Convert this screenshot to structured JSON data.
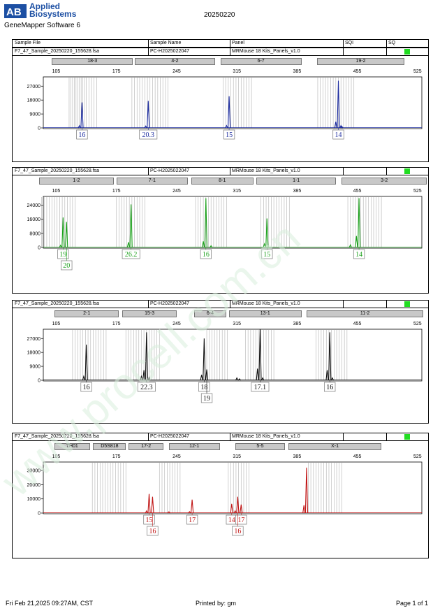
{
  "header": {
    "logo_mark": "AB",
    "logo_line1": "Applied",
    "logo_line2": "Biosystems",
    "software": "GeneMapper Software 6",
    "report_date": "20250220"
  },
  "table_header": {
    "sample_file": "Sample File",
    "sample_name": "Sample Name",
    "panel": "Panel",
    "sqi": "SQI",
    "sq": "SQ"
  },
  "footer": {
    "printed_at": "Fri Feb 21,2025 09:27AM, CST",
    "printed_by": "Printed by: gm",
    "page": "Page 1 of 1"
  },
  "watermark": "www.procell.com.cn",
  "colors": {
    "blue": "#1a2a9e",
    "green": "#1aa01a",
    "black": "#111111",
    "red": "#c01515",
    "sq_ok": "#22dd22",
    "marker_bg": "#c8c8c8"
  },
  "chart_data": [
    {
      "type": "line",
      "dye": "blue",
      "sample_file": "F7_47_Sample_20250220_155628.fsa",
      "sample_name": "PC-H2025022047",
      "panel": "MRMouse 18 Kits_Panels_v1.0",
      "x_ticks": [
        105,
        175,
        245,
        315,
        385,
        455,
        525
      ],
      "xlim": [
        90,
        530
      ],
      "ylim": [
        0,
        33000
      ],
      "y_ticks": [
        0,
        9000,
        18000,
        27000
      ],
      "markers": [
        {
          "label": "18-3",
          "start": 100,
          "end": 194
        },
        {
          "label": "4-2",
          "start": 196,
          "end": 290
        },
        {
          "label": "6-7",
          "start": 296,
          "end": 390
        },
        {
          "label": "19-2",
          "start": 408,
          "end": 510
        }
      ],
      "bins": [
        [
          120,
          122,
          124,
          126,
          128,
          130,
          132,
          134,
          136,
          138,
          140,
          143,
          146,
          149,
          152
        ],
        [
          193,
          196,
          199,
          202,
          205,
          208,
          211,
          214,
          217,
          220,
          223,
          226,
          229,
          232,
          235
        ],
        [
          299,
          302,
          305,
          308,
          311,
          314,
          317,
          320,
          323,
          326,
          329,
          332
        ],
        [
          409,
          412,
          415,
          418,
          421,
          424,
          427,
          430,
          433,
          436,
          439,
          442,
          445,
          448,
          451
        ]
      ],
      "peaks": [
        {
          "x": 135,
          "height": 16500
        },
        {
          "x": 132,
          "height": 1500
        },
        {
          "x": 212,
          "height": 17500
        },
        {
          "x": 209,
          "height": 1200
        },
        {
          "x": 306,
          "height": 20500
        },
        {
          "x": 303,
          "height": 1500
        },
        {
          "x": 433,
          "height": 30500
        },
        {
          "x": 430,
          "height": 4000
        },
        {
          "x": 436,
          "height": 1500
        },
        {
          "x": 437,
          "height": 1000
        }
      ],
      "alleles": [
        {
          "label": "16",
          "x": 135,
          "row": 0
        },
        {
          "label": "20.3",
          "x": 212,
          "row": 0
        },
        {
          "label": "15",
          "x": 306,
          "row": 0
        },
        {
          "label": "14",
          "x": 433,
          "row": 0
        }
      ]
    },
    {
      "type": "line",
      "dye": "green",
      "sample_file": "F7_47_Sample_20250220_155628.fsa",
      "sample_name": "PC-H2025022047",
      "panel": "MRMouse 18 Kits_Panels_v1.0",
      "x_ticks": [
        105,
        175,
        245,
        315,
        385,
        455,
        525
      ],
      "xlim": [
        90,
        530
      ],
      "ylim": [
        0,
        29000
      ],
      "y_ticks": [
        0,
        8000,
        16000,
        24000
      ],
      "markers": [
        {
          "label": "1-2",
          "start": 85,
          "end": 172
        },
        {
          "label": "7-1",
          "start": 175,
          "end": 258
        },
        {
          "label": "8-1",
          "start": 262,
          "end": 334
        },
        {
          "label": "1-1",
          "start": 338,
          "end": 430
        },
        {
          "label": "3-2",
          "start": 437,
          "end": 542
        }
      ],
      "bins": [
        [
          88,
          91,
          94,
          97,
          100,
          103,
          106,
          109,
          112,
          115,
          118,
          121,
          124,
          127
        ],
        [
          175,
          178,
          181,
          184,
          187,
          190,
          193,
          196,
          199,
          202,
          205,
          208
        ],
        [
          267,
          270,
          273,
          276,
          279,
          282,
          285,
          288,
          291,
          294,
          297,
          300,
          303
        ],
        [
          343,
          346,
          349,
          352,
          355,
          358,
          361,
          364,
          367,
          370,
          373,
          376
        ],
        [
          444,
          447,
          450,
          453,
          456,
          459,
          462,
          465,
          468,
          471,
          474,
          477,
          480,
          483
        ]
      ],
      "peaks": [
        {
          "x": 113,
          "height": 17000
        },
        {
          "x": 117,
          "height": 14500
        },
        {
          "x": 110,
          "height": 1200
        },
        {
          "x": 192,
          "height": 24500
        },
        {
          "x": 189,
          "height": 3000
        },
        {
          "x": 279,
          "height": 28000
        },
        {
          "x": 276,
          "height": 3500
        },
        {
          "x": 285,
          "height": 1000
        },
        {
          "x": 350,
          "height": 16500
        },
        {
          "x": 347,
          "height": 2000
        },
        {
          "x": 457,
          "height": 28000
        },
        {
          "x": 454,
          "height": 6500
        },
        {
          "x": 447,
          "height": 1500
        }
      ],
      "alleles": [
        {
          "label": "19",
          "x": 113,
          "row": 0
        },
        {
          "label": "20",
          "x": 117,
          "row": 1
        },
        {
          "label": "26.2",
          "x": 192,
          "row": 0
        },
        {
          "label": "16",
          "x": 279,
          "row": 0
        },
        {
          "label": "15",
          "x": 350,
          "row": 0
        },
        {
          "label": "14",
          "x": 457,
          "row": 0
        }
      ]
    },
    {
      "type": "line",
      "dye": "black",
      "sample_file": "F7_47_Sample_20250220_155628.fsa",
      "sample_name": "PC-H2025022047",
      "panel": "MRMouse 18 Kits_Panels_v1.0",
      "x_ticks": [
        105,
        175,
        245,
        315,
        385,
        455,
        525
      ],
      "xlim": [
        90,
        530
      ],
      "ylim": [
        0,
        33000
      ],
      "y_ticks": [
        0,
        9000,
        18000,
        27000
      ],
      "markers": [
        {
          "label": "2-1",
          "start": 103,
          "end": 178
        },
        {
          "label": "15-3",
          "start": 182,
          "end": 245
        },
        {
          "label": "6-4",
          "start": 265,
          "end": 303
        },
        {
          "label": "13-1",
          "start": 306,
          "end": 390
        },
        {
          "label": "11-2",
          "start": 396,
          "end": 532
        }
      ],
      "bins": [
        [
          124,
          127,
          130,
          133,
          136,
          139,
          142,
          145,
          148,
          151,
          154,
          157,
          160,
          163
        ],
        [
          186,
          189,
          192,
          195,
          198,
          201,
          204,
          207,
          210,
          213,
          216,
          219,
          222,
          225
        ],
        [
          280,
          283,
          286,
          289,
          292,
          295,
          298,
          301,
          304
        ],
        [
          325,
          328,
          331,
          334,
          337,
          340,
          343,
          346,
          349,
          352,
          355,
          358
        ],
        [
          407,
          410,
          413,
          416,
          419,
          422,
          425,
          428,
          431,
          434,
          437,
          440,
          443
        ]
      ],
      "peaks": [
        {
          "x": 140,
          "height": 23000
        },
        {
          "x": 137,
          "height": 2500
        },
        {
          "x": 210,
          "height": 31000
        },
        {
          "x": 207,
          "height": 6500
        },
        {
          "x": 204,
          "height": 2500
        },
        {
          "x": 213,
          "height": 1800
        },
        {
          "x": 277,
          "height": 27000
        },
        {
          "x": 280,
          "height": 7000
        },
        {
          "x": 274,
          "height": 3500
        },
        {
          "x": 315,
          "height": 1500
        },
        {
          "x": 318,
          "height": 900
        },
        {
          "x": 342,
          "height": 33000
        },
        {
          "x": 339,
          "height": 7500
        },
        {
          "x": 345,
          "height": 1500
        },
        {
          "x": 423,
          "height": 31000
        },
        {
          "x": 420,
          "height": 6500
        },
        {
          "x": 426,
          "height": 1500
        }
      ],
      "alleles": [
        {
          "label": "16",
          "x": 140,
          "row": 0
        },
        {
          "label": "22.3",
          "x": 210,
          "row": 0
        },
        {
          "label": "18",
          "x": 277,
          "row": 0
        },
        {
          "label": "19",
          "x": 280,
          "row": 1
        },
        {
          "label": "17.1",
          "x": 342,
          "row": 0
        },
        {
          "label": "16",
          "x": 423,
          "row": 0
        }
      ]
    },
    {
      "type": "line",
      "dye": "red",
      "sample_file": "F7_47_Sample_20250220_155628.fsa",
      "sample_name": "PC-H2025022047",
      "panel": "MRMouse 18 Kits_Panels_v1.0",
      "x_ticks": [
        105,
        175,
        245,
        315,
        385,
        455,
        525
      ],
      "xlim": [
        90,
        530
      ],
      "ylim": [
        0,
        36000
      ],
      "y_ticks": [
        0,
        10000,
        20000,
        30000
      ],
      "markers": [
        {
          "label": "TH01",
          "start": 103,
          "end": 144
        },
        {
          "label": "D5S818",
          "start": 148,
          "end": 186
        },
        {
          "label": "17-2",
          "start": 189,
          "end": 230
        },
        {
          "label": "12-1",
          "start": 236,
          "end": 295
        },
        {
          "label": "5-5",
          "start": 313,
          "end": 371
        },
        {
          "label": "X-1",
          "start": 375,
          "end": 483
        }
      ],
      "bins": [
        [
          147,
          150,
          153,
          156,
          159,
          162,
          165,
          168,
          171,
          174,
          177,
          180,
          183,
          186
        ],
        [
          225,
          228,
          231,
          234,
          237,
          240,
          243,
          246,
          249
        ],
        [
          305,
          308,
          311,
          314,
          317,
          320,
          323,
          326,
          329
        ],
        [
          398,
          401,
          404,
          407,
          410,
          413,
          416,
          419,
          422,
          425,
          428,
          431,
          434,
          437
        ]
      ],
      "peaks": [
        {
          "x": 213,
          "height": 13500
        },
        {
          "x": 217,
          "height": 11500
        },
        {
          "x": 210,
          "height": 1500
        },
        {
          "x": 236,
          "height": 900
        },
        {
          "x": 263,
          "height": 9500
        },
        {
          "x": 260,
          "height": 1000
        },
        {
          "x": 309,
          "height": 6500
        },
        {
          "x": 316,
          "height": 11500
        },
        {
          "x": 320,
          "height": 6000
        },
        {
          "x": 313,
          "height": 1500
        },
        {
          "x": 396,
          "height": 32000
        },
        {
          "x": 393,
          "height": 5500
        }
      ],
      "alleles": [
        {
          "label": "15",
          "x": 213,
          "row": 0
        },
        {
          "label": "16",
          "x": 217,
          "row": 1
        },
        {
          "label": "17",
          "x": 263,
          "row": 0
        },
        {
          "label": "14",
          "x": 309,
          "row": 0
        },
        {
          "label": "17",
          "x": 320,
          "row": 0
        },
        {
          "label": "16",
          "x": 316,
          "row": 1
        }
      ]
    }
  ]
}
